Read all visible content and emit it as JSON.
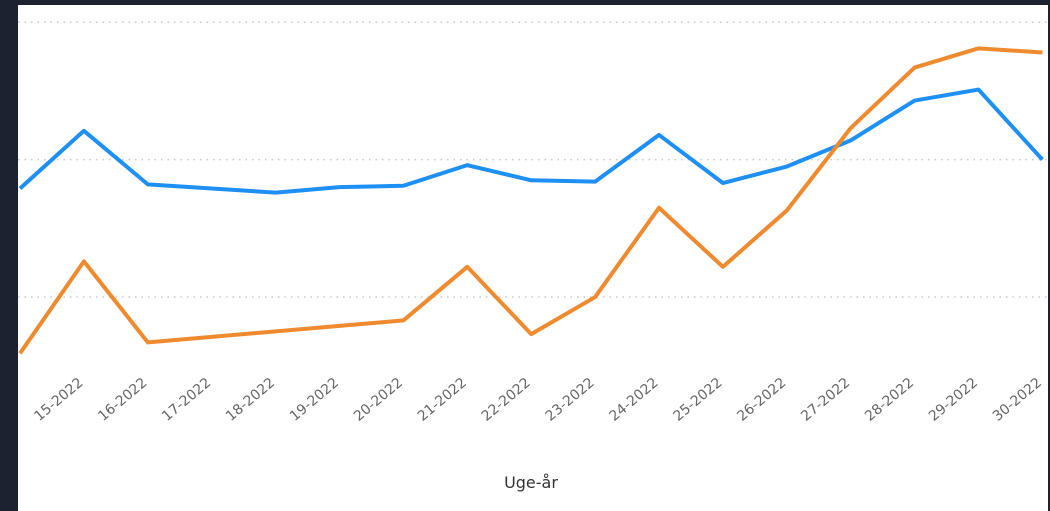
{
  "chart_data": {
    "type": "line",
    "x_label": "Uge-år",
    "categories": [
      null,
      "15-2022",
      "16-2022",
      "17-2022",
      "18-2022",
      "19-2022",
      "20-2022",
      "21-2022",
      "22-2022",
      "23-2022",
      "24-2022",
      "25-2022",
      "26-2022",
      "27-2022",
      "28-2022",
      "29-2022",
      "30-2022"
    ],
    "series": [
      {
        "color": "#1e8ff5",
        "values": [
          1.79,
          2.21,
          1.82,
          1.79,
          1.76,
          1.8,
          1.81,
          1.96,
          1.85,
          1.84,
          2.18,
          1.83,
          1.95,
          2.14,
          2.43,
          2.51,
          2.0
        ]
      },
      {
        "color": "#f08a2f",
        "values": [
          0.59,
          1.26,
          0.67,
          0.71,
          0.75,
          0.79,
          0.83,
          1.22,
          0.73,
          1.0,
          1.65,
          1.22,
          1.63,
          2.23,
          2.67,
          2.81,
          2.78
        ]
      }
    ],
    "ylim": [
      0.4,
      3.1
    ],
    "yticks": [
      1,
      2,
      3
    ],
    "grid": true
  }
}
